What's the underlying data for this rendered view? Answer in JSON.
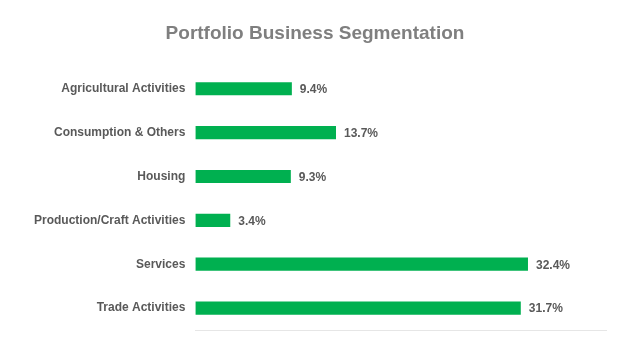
{
  "chart_data": {
    "type": "bar",
    "orientation": "horizontal",
    "title": "Portfolio Business Segmentation",
    "categories": [
      "Agricultural Activities",
      "Consumption & Others",
      "Housing",
      "Production/Craft Activities",
      "Services",
      "Trade Activities"
    ],
    "values": [
      9.4,
      13.7,
      9.3,
      3.4,
      32.4,
      31.7
    ],
    "value_labels": [
      "9.4%",
      "13.7%",
      "9.3%",
      "3.4%",
      "32.4%",
      "31.7%"
    ],
    "color": "#00b050",
    "xlim": [
      0,
      40
    ],
    "grid": false,
    "data_labels": true,
    "tick_labels": "y"
  }
}
